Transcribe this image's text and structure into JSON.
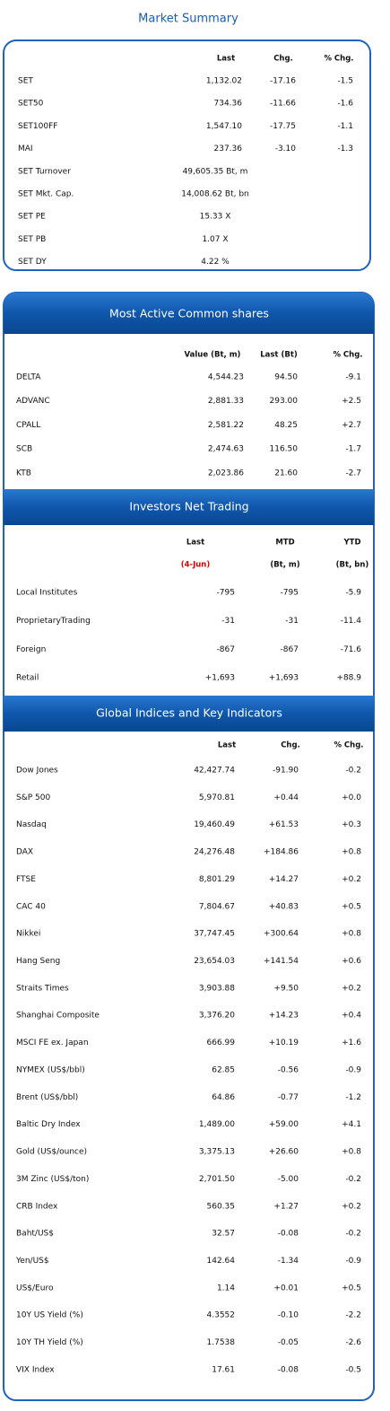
{
  "market_summary": {
    "title": "Market Summary",
    "columns": [
      "Last",
      "Chg.",
      "% Chg."
    ],
    "rows": [
      [
        "SET",
        "1,132.02",
        "-17.16",
        "-1.5"
      ],
      [
        "SET50",
        "734.36",
        "-11.66",
        "-1.6"
      ],
      [
        "SET100FF",
        "1,547.10",
        "-17.75",
        "-1.1"
      ],
      [
        "MAI",
        "237.36",
        "-3.10",
        "-1.3"
      ],
      [
        "SET Turnover",
        "49,605.35 Bt, m"
      ],
      [
        "SET Mkt. Cap.",
        "14,008.62 Bt, bn"
      ],
      [
        "SET PE",
        "15.33 X"
      ],
      [
        "SET PB",
        "1.07 X"
      ],
      [
        "SET DY",
        "4.22 %"
      ]
    ]
  },
  "most_active": {
    "title": "Most Active Common shares",
    "columns": [
      "Value (Bt, m)",
      "Last (Bt)",
      "% Chg."
    ],
    "rows": [
      [
        "DELTA",
        "4,544.23",
        "94.50",
        "-9.1"
      ],
      [
        "ADVANC",
        "2,881.33",
        "293.00",
        "+2.5"
      ],
      [
        "CPALL",
        "2,581.22",
        "48.25",
        "+2.7"
      ],
      [
        "SCB",
        "2,474.63",
        "116.50",
        "-1.7"
      ],
      [
        "KTB",
        "2,023.86",
        "21.60",
        "-2.7"
      ]
    ]
  },
  "investors": {
    "title": "Investors Net Trading",
    "columns": [
      "Last",
      "MTD",
      "YTD"
    ],
    "subheader": [
      "(4-Jun)",
      "(Bt, m)",
      "(Bt, bn)"
    ],
    "rows": [
      [
        "Local Institutes",
        "-795",
        "-795",
        "-5.9"
      ],
      [
        "ProprietaryTrading",
        "-31",
        "-31",
        "-11.4"
      ],
      [
        "Foreign",
        "-867",
        "-867",
        "-71.6"
      ],
      [
        "Retail",
        "+1,693",
        "+1,693",
        "+88.9"
      ]
    ]
  },
  "global": {
    "title": "Global Indices and Key Indicators",
    "columns": [
      "Last",
      "Chg.",
      "% Chg."
    ],
    "rows": [
      [
        "Dow Jones",
        "42,427.74",
        "-91.90",
        "-0.2"
      ],
      [
        "S&P 500",
        "5,970.81",
        "+0.44",
        "+0.0"
      ],
      [
        "Nasdaq",
        "19,460.49",
        "+61.53",
        "+0.3"
      ],
      [
        "DAX",
        "24,276.48",
        "+184.86",
        "+0.8"
      ],
      [
        "FTSE",
        "8,801.29",
        "+14.27",
        "+0.2"
      ],
      [
        "CAC 40",
        "7,804.67",
        "+40.83",
        "+0.5"
      ],
      [
        "Nikkei",
        "37,747.45",
        "+300.64",
        "+0.8"
      ],
      [
        "Hang Seng",
        "23,654.03",
        "+141.54",
        "+0.6"
      ],
      [
        "Straits Times",
        "3,903.88",
        "+9.50",
        "+0.2"
      ],
      [
        "Shanghai Composite",
        "3,376.20",
        "+14.23",
        "+0.4"
      ],
      [
        "MSCI FE ex. Japan",
        "666.99",
        "+10.19",
        "+1.6"
      ],
      [
        "NYMEX (US$/bbl)",
        "62.85",
        "-0.56",
        "-0.9"
      ],
      [
        "Brent (US$/bbl)",
        "64.86",
        "-0.77",
        "-1.2"
      ],
      [
        "Baltic Dry Index",
        "1,489.00",
        "+59.00",
        "+4.1"
      ],
      [
        "Gold (US$/ounce)",
        "3,375.13",
        "+26.60",
        "+0.8"
      ],
      [
        "3M Zinc (US$/ton)",
        "2,701.50",
        "-5.00",
        "-0.2"
      ],
      [
        "CRB Index",
        "560.35",
        "+1.27",
        "+0.2"
      ],
      [
        "Baht/US$",
        "32.57",
        "-0.08",
        "-0.2"
      ],
      [
        "Yen/US$",
        "142.64",
        "-1.34",
        "-0.9"
      ],
      [
        "US$/Euro",
        "1.14",
        "+0.01",
        "+0.5"
      ],
      [
        "10Y US Yield (%)",
        "4.3552",
        "-0.10",
        "-2.2"
      ],
      [
        "10Y TH Yield (%)",
        "1.7538",
        "-0.05",
        "-2.6"
      ],
      [
        "VIX Index",
        "17.61",
        "-0.08",
        "-0.5"
      ]
    ]
  }
}
